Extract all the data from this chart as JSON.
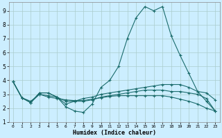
{
  "xlabel": "Humidex (Indice chaleur)",
  "bg_color": "#cceeff",
  "grid_color": "#aacccc",
  "line_color": "#1a6b6b",
  "xlim": [
    -0.5,
    23.5
  ],
  "ylim": [
    1,
    9.6
  ],
  "xticks": [
    0,
    1,
    2,
    3,
    4,
    5,
    6,
    7,
    8,
    9,
    10,
    11,
    12,
    13,
    14,
    15,
    16,
    17,
    18,
    19,
    20,
    21,
    22,
    23
  ],
  "yticks": [
    1,
    2,
    3,
    4,
    5,
    6,
    7,
    8,
    9
  ],
  "line1_x": [
    0,
    1,
    2,
    3,
    4,
    5,
    6,
    7,
    8,
    9,
    10,
    11,
    12,
    13,
    14,
    15,
    16,
    17,
    18,
    19,
    20,
    21,
    22,
    23
  ],
  "line1_y": [
    3.9,
    2.75,
    2.4,
    3.1,
    3.1,
    2.8,
    2.1,
    1.8,
    1.7,
    2.3,
    3.5,
    4.0,
    5.0,
    7.0,
    8.5,
    9.3,
    9.0,
    9.3,
    7.2,
    5.8,
    4.5,
    3.2,
    3.1,
    2.6
  ],
  "line2_x": [
    0,
    1,
    2,
    3,
    4,
    5,
    6,
    7,
    8,
    9,
    10,
    11,
    12,
    13,
    14,
    15,
    16,
    17,
    18,
    19,
    20,
    21,
    22,
    23
  ],
  "line2_y": [
    3.9,
    2.75,
    2.4,
    3.1,
    3.1,
    2.8,
    2.3,
    2.5,
    2.7,
    2.8,
    3.0,
    3.1,
    3.2,
    3.3,
    3.4,
    3.5,
    3.6,
    3.7,
    3.7,
    3.7,
    3.5,
    3.2,
    2.5,
    1.8
  ],
  "line3_x": [
    0,
    1,
    2,
    3,
    4,
    5,
    6,
    7,
    8,
    9,
    10,
    11,
    12,
    13,
    14,
    15,
    16,
    17,
    18,
    19,
    20,
    21,
    22,
    23
  ],
  "line3_y": [
    3.9,
    2.75,
    2.4,
    3.0,
    2.8,
    2.7,
    2.6,
    2.55,
    2.55,
    2.65,
    2.75,
    2.85,
    2.9,
    2.9,
    2.9,
    2.9,
    2.9,
    2.9,
    2.8,
    2.65,
    2.5,
    2.3,
    2.0,
    1.8
  ],
  "line4_x": [
    0,
    1,
    2,
    3,
    4,
    5,
    6,
    7,
    8,
    9,
    10,
    11,
    12,
    13,
    14,
    15,
    16,
    17,
    18,
    19,
    20,
    21,
    22,
    23
  ],
  "line4_y": [
    3.9,
    2.75,
    2.5,
    3.0,
    2.9,
    2.8,
    2.5,
    2.5,
    2.5,
    2.6,
    2.8,
    2.9,
    3.0,
    3.1,
    3.2,
    3.3,
    3.3,
    3.3,
    3.2,
    3.2,
    3.1,
    3.0,
    2.7,
    1.8
  ]
}
